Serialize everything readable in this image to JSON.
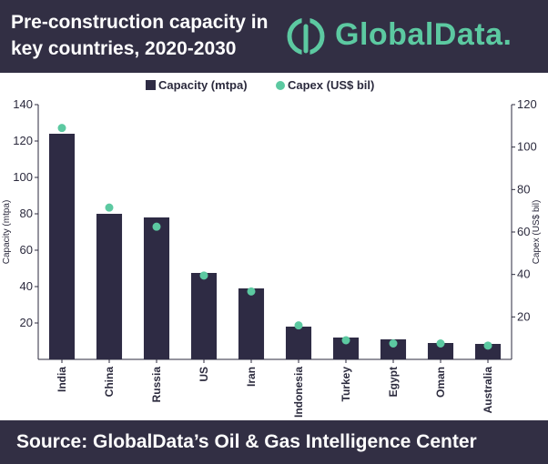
{
  "header": {
    "title": "Pre-construction capacity in key countries, 2020-2030",
    "logo_text": "GlobalData.",
    "logo_icon": "globaldata-logo-icon"
  },
  "colors": {
    "header_bg": "#322f44",
    "bar": "#2e2b44",
    "marker": "#5cc9a1",
    "brand": "#5cc9a1"
  },
  "legend": {
    "capacity_label": "Capacity (mtpa)",
    "capex_label": "Capex (US$ bil)"
  },
  "footer": {
    "source": "Source: GlobalData’s Oil & Gas Intelligence Center"
  },
  "chart_data": {
    "type": "bar",
    "categories": [
      "India",
      "China",
      "Russia",
      "US",
      "Iran",
      "Indonesia",
      "Turkey",
      "Egypt",
      "Oman",
      "Australia"
    ],
    "series": [
      {
        "name": "Capacity (mtpa)",
        "type": "bar",
        "axis": "left",
        "values": [
          124,
          80,
          78,
          47.5,
          39,
          18,
          12,
          11,
          9,
          8.5
        ]
      },
      {
        "name": "Capex (US$ bil)",
        "type": "scatter",
        "axis": "right",
        "values": [
          109,
          71.5,
          62.5,
          39.5,
          32,
          16,
          9,
          7.5,
          7.5,
          6.5
        ]
      }
    ],
    "ylabel": "Capacity (mtpa)",
    "y2label": "Capex (US$ bil)",
    "ylim": [
      0,
      140
    ],
    "y2lim": [
      0,
      120
    ],
    "yticks": [
      20,
      40,
      60,
      80,
      100,
      120,
      140
    ],
    "y2ticks": [
      20,
      40,
      60,
      80,
      100,
      120
    ],
    "legend_position": "top-center",
    "grid": false
  }
}
